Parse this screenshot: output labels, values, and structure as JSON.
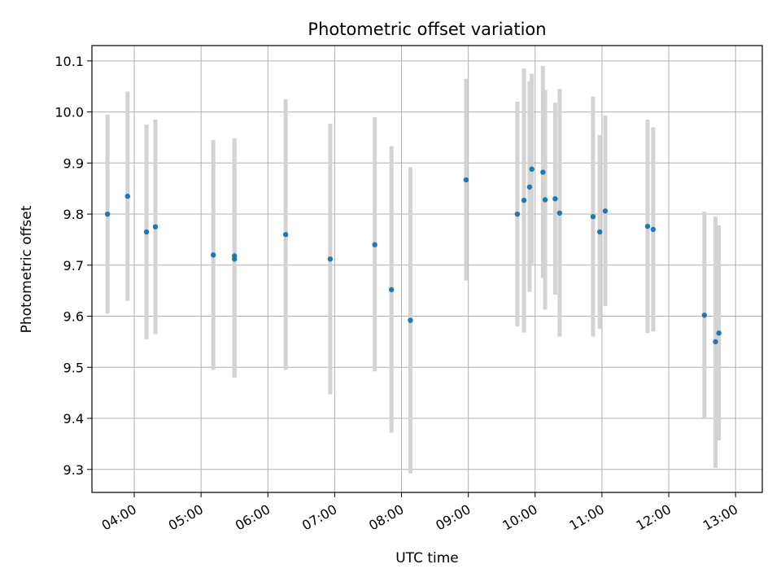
{
  "chart_data": {
    "type": "scatter",
    "title": "Photometric offset variation",
    "xlabel": "UTC time",
    "ylabel": "Photometric offset",
    "x_ticks": [
      "04:00",
      "05:00",
      "06:00",
      "07:00",
      "08:00",
      "09:00",
      "10:00",
      "11:00",
      "12:00",
      "13:00"
    ],
    "y_ticks": [
      "9.3",
      "9.4",
      "9.5",
      "9.6",
      "9.7",
      "9.8",
      "9.9",
      "10.0",
      "10.1"
    ],
    "xlim": [
      "03:22",
      "13:24"
    ],
    "ylim": [
      9.255,
      10.13
    ],
    "grid": true,
    "legend": "none",
    "colors": {
      "points": "#1f77b4",
      "error_bars": "#d3d3d3",
      "grid": "#b0b0b0"
    },
    "series": [
      {
        "points": [
          {
            "x": "03:36",
            "y": 9.8,
            "y_low": 9.605,
            "y_high": 9.995
          },
          {
            "x": "03:54",
            "y": 9.835,
            "y_low": 9.63,
            "y_high": 10.04
          },
          {
            "x": "04:11",
            "y": 9.765,
            "y_low": 9.555,
            "y_high": 9.975
          },
          {
            "x": "04:19",
            "y": 9.775,
            "y_low": 9.565,
            "y_high": 9.985
          },
          {
            "x": "05:11",
            "y": 9.72,
            "y_low": 9.495,
            "y_high": 9.945
          },
          {
            "x": "05:30",
            "y": 9.712,
            "y_low": 9.48,
            "y_high": 9.948
          },
          {
            "x": "05:30",
            "y": 9.718,
            "y_low": 9.48,
            "y_high": 9.948
          },
          {
            "x": "06:16",
            "y": 9.76,
            "y_low": 9.495,
            "y_high": 10.025
          },
          {
            "x": "06:56",
            "y": 9.712,
            "y_low": 9.447,
            "y_high": 9.977
          },
          {
            "x": "07:36",
            "y": 9.74,
            "y_low": 9.492,
            "y_high": 9.99
          },
          {
            "x": "07:51",
            "y": 9.652,
            "y_low": 9.372,
            "y_high": 9.933
          },
          {
            "x": "08:08",
            "y": 9.592,
            "y_low": 9.292,
            "y_high": 9.892
          },
          {
            "x": "08:58",
            "y": 9.867,
            "y_low": 9.67,
            "y_high": 10.065
          },
          {
            "x": "09:44",
            "y": 9.8,
            "y_low": 9.58,
            "y_high": 10.02
          },
          {
            "x": "09:50",
            "y": 9.827,
            "y_low": 9.568,
            "y_high": 10.085
          },
          {
            "x": "09:55",
            "y": 9.853,
            "y_low": 9.648,
            "y_high": 10.06
          },
          {
            "x": "09:57",
            "y": 9.888,
            "y_low": 9.702,
            "y_high": 10.075
          },
          {
            "x": "10:07",
            "y": 9.882,
            "y_low": 9.675,
            "y_high": 10.09
          },
          {
            "x": "10:09",
            "y": 9.828,
            "y_low": 9.613,
            "y_high": 10.043
          },
          {
            "x": "10:18",
            "y": 9.83,
            "y_low": 9.642,
            "y_high": 10.018
          },
          {
            "x": "10:22",
            "y": 9.802,
            "y_low": 9.56,
            "y_high": 10.045
          },
          {
            "x": "10:52",
            "y": 9.795,
            "y_low": 9.56,
            "y_high": 10.03
          },
          {
            "x": "10:58",
            "y": 9.765,
            "y_low": 9.575,
            "y_high": 9.955
          },
          {
            "x": "11:03",
            "y": 9.806,
            "y_low": 9.62,
            "y_high": 9.993
          },
          {
            "x": "11:41",
            "y": 9.776,
            "y_low": 9.567,
            "y_high": 9.985
          },
          {
            "x": "11:46",
            "y": 9.77,
            "y_low": 9.57,
            "y_high": 9.97
          },
          {
            "x": "12:32",
            "y": 9.602,
            "y_low": 9.4,
            "y_high": 9.805
          },
          {
            "x": "12:42",
            "y": 9.55,
            "y_low": 9.303,
            "y_high": 9.795
          },
          {
            "x": "12:45",
            "y": 9.567,
            "y_low": 9.357,
            "y_high": 9.778
          }
        ]
      }
    ]
  }
}
